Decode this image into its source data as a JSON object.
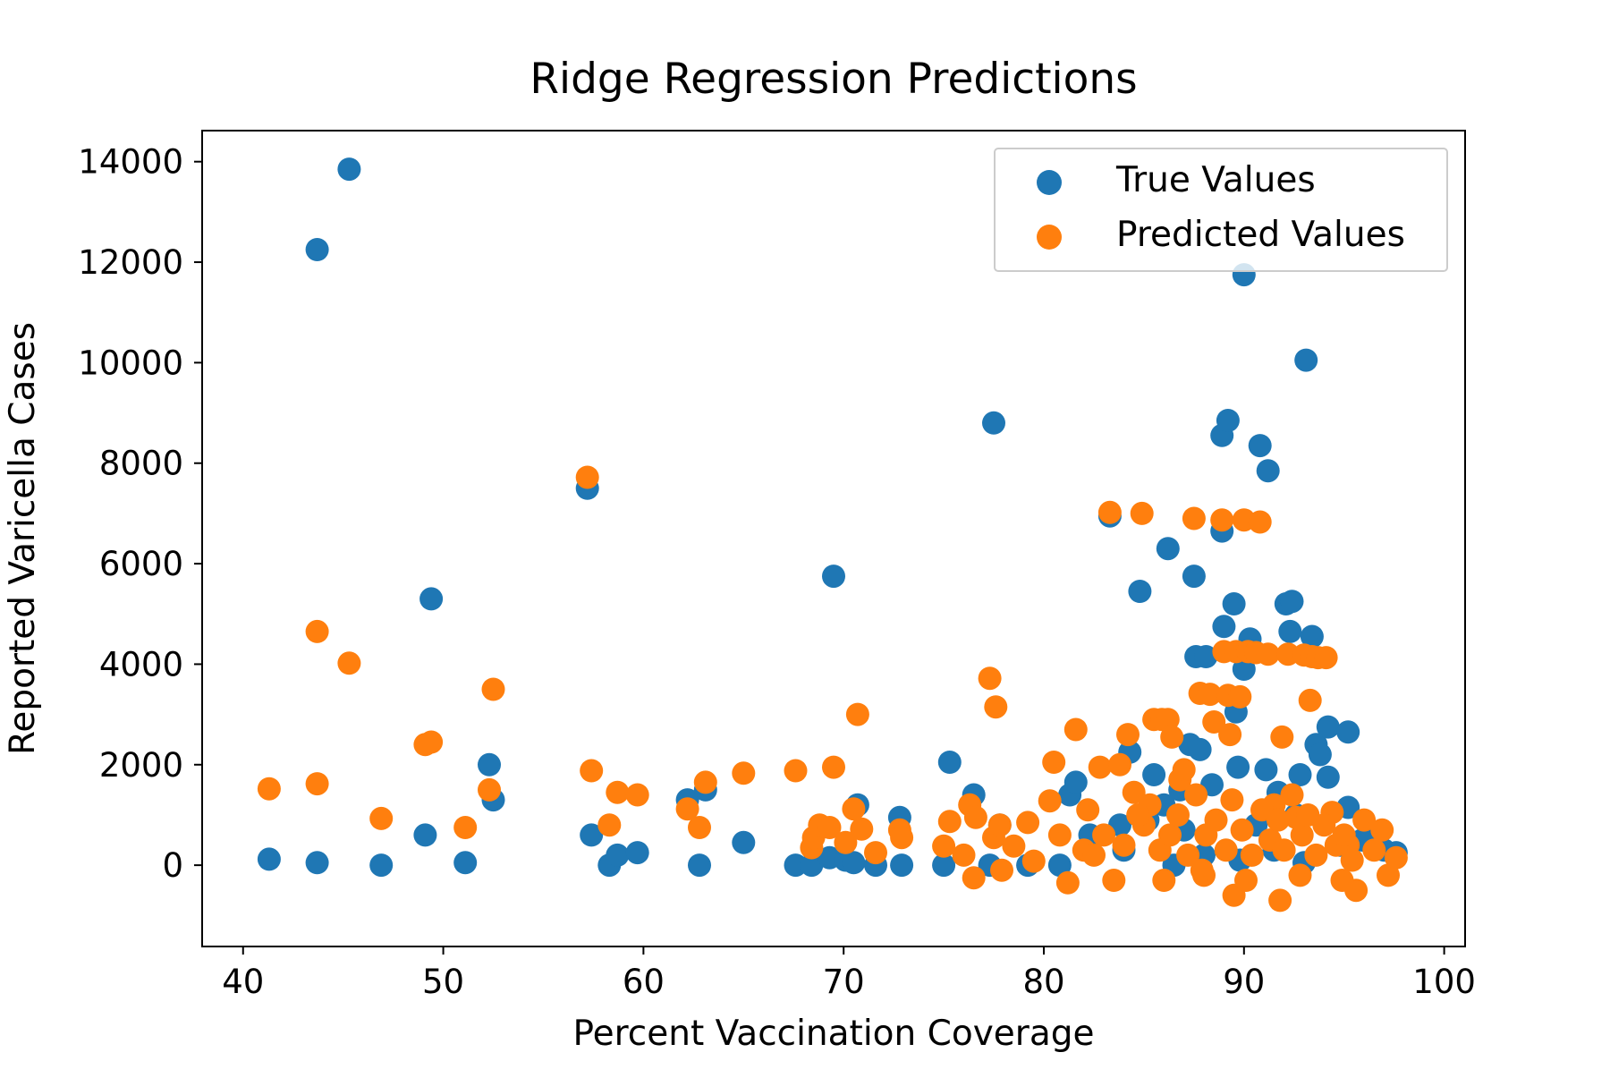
{
  "chart_data": {
    "type": "scatter",
    "title": "Ridge Regression Predictions",
    "xlabel": "Percent Vaccination Coverage",
    "ylabel": "Reported Varicella Cases",
    "xlim": [
      38,
      101
    ],
    "ylim": [
      -1600,
      14600
    ],
    "xticks": [
      40,
      50,
      60,
      70,
      80,
      90,
      100
    ],
    "yticks": [
      0,
      2000,
      4000,
      6000,
      8000,
      10000,
      12000,
      14000
    ],
    "xtick_labels": [
      "40",
      "50",
      "60",
      "70",
      "80",
      "90",
      "100"
    ],
    "ytick_labels": [
      "0",
      "2000",
      "4000",
      "6000",
      "8000",
      "10000",
      "12000",
      "14000"
    ],
    "grid": false,
    "legend_position": "top-right",
    "series": [
      {
        "name": "True Values",
        "color": "#1f77b4",
        "points": [
          [
            41.3,
            120
          ],
          [
            43.7,
            50
          ],
          [
            43.7,
            12250
          ],
          [
            45.3,
            13850
          ],
          [
            46.9,
            0
          ],
          [
            49.1,
            600
          ],
          [
            49.4,
            5300
          ],
          [
            51.1,
            50
          ],
          [
            52.3,
            2000
          ],
          [
            52.5,
            1300
          ],
          [
            57.2,
            7500
          ],
          [
            57.4,
            600
          ],
          [
            58.3,
            0
          ],
          [
            58.7,
            200
          ],
          [
            59.7,
            250
          ],
          [
            62.2,
            1300
          ],
          [
            62.8,
            0
          ],
          [
            63.1,
            1500
          ],
          [
            65.0,
            450
          ],
          [
            67.6,
            0
          ],
          [
            68.4,
            0
          ],
          [
            69.3,
            150
          ],
          [
            69.5,
            5750
          ],
          [
            70.1,
            100
          ],
          [
            70.5,
            50
          ],
          [
            70.7,
            1200
          ],
          [
            71.6,
            0
          ],
          [
            72.8,
            950
          ],
          [
            72.9,
            0
          ],
          [
            75.0,
            0
          ],
          [
            75.3,
            2050
          ],
          [
            76.5,
            1400
          ],
          [
            77.3,
            0
          ],
          [
            77.5,
            8800
          ],
          [
            77.8,
            800
          ],
          [
            79.2,
            0
          ],
          [
            80.8,
            0
          ],
          [
            81.3,
            1400
          ],
          [
            81.6,
            1650
          ],
          [
            82.3,
            600
          ],
          [
            83.3,
            6950
          ],
          [
            83.8,
            800
          ],
          [
            84.3,
            2250
          ],
          [
            84.8,
            5450
          ],
          [
            85.5,
            1800
          ],
          [
            86.2,
            6300
          ],
          [
            86.8,
            1500
          ],
          [
            87.3,
            2400
          ],
          [
            87.5,
            5750
          ],
          [
            87.6,
            4150
          ],
          [
            87.8,
            2300
          ],
          [
            88.1,
            4150
          ],
          [
            88.4,
            1600
          ],
          [
            88.9,
            8550
          ],
          [
            88.9,
            6650
          ],
          [
            89.0,
            4750
          ],
          [
            89.2,
            8850
          ],
          [
            89.5,
            5200
          ],
          [
            89.6,
            3050
          ],
          [
            89.7,
            1950
          ],
          [
            90.0,
            11750
          ],
          [
            90.0,
            3900
          ],
          [
            90.3,
            4500
          ],
          [
            90.8,
            8350
          ],
          [
            91.1,
            1900
          ],
          [
            91.2,
            7850
          ],
          [
            91.7,
            1450
          ],
          [
            92.1,
            5200
          ],
          [
            92.3,
            4650
          ],
          [
            92.4,
            5250
          ],
          [
            92.8,
            1800
          ],
          [
            93.1,
            10050
          ],
          [
            93.4,
            4550
          ],
          [
            93.6,
            2400
          ],
          [
            93.8,
            2200
          ],
          [
            94.2,
            2750
          ],
          [
            94.2,
            1750
          ],
          [
            95.2,
            2650
          ],
          [
            95.2,
            1150
          ],
          [
            96.3,
            600
          ],
          [
            97.0,
            300
          ],
          [
            97.6,
            250
          ],
          [
            86.5,
            0
          ],
          [
            88.0,
            200
          ],
          [
            89.8,
            100
          ],
          [
            91.5,
            300
          ],
          [
            93.0,
            50
          ],
          [
            94.8,
            400
          ],
          [
            85.2,
            900
          ],
          [
            87.0,
            700
          ],
          [
            90.6,
            800
          ],
          [
            92.6,
            1000
          ],
          [
            95.9,
            500
          ],
          [
            84.0,
            300
          ],
          [
            86.0,
            1200
          ]
        ]
      },
      {
        "name": "Predicted Values",
        "color": "#ff7f0e",
        "points": [
          [
            41.3,
            1520
          ],
          [
            43.7,
            4650
          ],
          [
            43.7,
            1620
          ],
          [
            45.3,
            4020
          ],
          [
            46.9,
            930
          ],
          [
            49.1,
            2400
          ],
          [
            49.4,
            2450
          ],
          [
            51.1,
            750
          ],
          [
            52.3,
            1500
          ],
          [
            52.5,
            3500
          ],
          [
            57.2,
            7720
          ],
          [
            57.4,
            1880
          ],
          [
            58.3,
            800
          ],
          [
            58.7,
            1450
          ],
          [
            59.7,
            1400
          ],
          [
            62.2,
            1120
          ],
          [
            62.8,
            750
          ],
          [
            63.1,
            1650
          ],
          [
            65.0,
            1830
          ],
          [
            67.6,
            1880
          ],
          [
            68.4,
            350
          ],
          [
            68.5,
            550
          ],
          [
            68.8,
            800
          ],
          [
            69.3,
            750
          ],
          [
            69.5,
            1950
          ],
          [
            70.1,
            450
          ],
          [
            70.5,
            1120
          ],
          [
            70.7,
            3000
          ],
          [
            70.9,
            720
          ],
          [
            71.6,
            250
          ],
          [
            72.8,
            700
          ],
          [
            72.9,
            550
          ],
          [
            75.0,
            380
          ],
          [
            75.3,
            870
          ],
          [
            76.0,
            200
          ],
          [
            76.3,
            1200
          ],
          [
            76.5,
            -250
          ],
          [
            76.6,
            950
          ],
          [
            77.3,
            3720
          ],
          [
            77.5,
            550
          ],
          [
            77.6,
            3150
          ],
          [
            77.8,
            800
          ],
          [
            77.9,
            -100
          ],
          [
            78.5,
            380
          ],
          [
            79.2,
            850
          ],
          [
            79.5,
            80
          ],
          [
            80.3,
            1280
          ],
          [
            80.5,
            2050
          ],
          [
            80.8,
            600
          ],
          [
            81.2,
            -350
          ],
          [
            81.6,
            2700
          ],
          [
            82.0,
            300
          ],
          [
            82.2,
            1100
          ],
          [
            82.8,
            1950
          ],
          [
            83.3,
            7020
          ],
          [
            83.5,
            -300
          ],
          [
            83.8,
            2000
          ],
          [
            84.2,
            2600
          ],
          [
            84.5,
            1450
          ],
          [
            84.9,
            7000
          ],
          [
            85.5,
            2900
          ],
          [
            85.9,
            2900
          ],
          [
            86.2,
            2900
          ],
          [
            86.4,
            2550
          ],
          [
            86.8,
            1700
          ],
          [
            87.0,
            1900
          ],
          [
            87.5,
            6900
          ],
          [
            87.8,
            3420
          ],
          [
            88.0,
            -200
          ],
          [
            88.3,
            3400
          ],
          [
            88.5,
            2850
          ],
          [
            88.9,
            6870
          ],
          [
            89.0,
            4250
          ],
          [
            89.2,
            3380
          ],
          [
            89.3,
            2600
          ],
          [
            89.5,
            -600
          ],
          [
            89.6,
            4250
          ],
          [
            89.8,
            3350
          ],
          [
            90.0,
            6870
          ],
          [
            90.2,
            4250
          ],
          [
            90.6,
            4230
          ],
          [
            90.8,
            6830
          ],
          [
            91.2,
            4200
          ],
          [
            91.5,
            1200
          ],
          [
            91.8,
            -700
          ],
          [
            91.9,
            2550
          ],
          [
            92.2,
            4200
          ],
          [
            92.6,
            950
          ],
          [
            93.0,
            4180
          ],
          [
            93.3,
            3280
          ],
          [
            93.4,
            4150
          ],
          [
            93.7,
            4130
          ],
          [
            94.1,
            4130
          ],
          [
            94.4,
            1050
          ],
          [
            95.2,
            400
          ],
          [
            96.0,
            900
          ],
          [
            96.9,
            700
          ],
          [
            97.2,
            -200
          ],
          [
            97.6,
            150
          ],
          [
            95.6,
            -500
          ],
          [
            85.0,
            800
          ],
          [
            85.3,
            1200
          ],
          [
            85.8,
            300
          ],
          [
            86.3,
            600
          ],
          [
            86.7,
            1000
          ],
          [
            87.2,
            200
          ],
          [
            87.6,
            1400
          ],
          [
            88.1,
            600
          ],
          [
            88.6,
            900
          ],
          [
            89.1,
            300
          ],
          [
            89.4,
            1300
          ],
          [
            89.9,
            700
          ],
          [
            90.4,
            200
          ],
          [
            90.9,
            1100
          ],
          [
            91.3,
            500
          ],
          [
            91.7,
            900
          ],
          [
            92.0,
            300
          ],
          [
            92.4,
            1400
          ],
          [
            92.9,
            600
          ],
          [
            93.2,
            1000
          ],
          [
            93.6,
            200
          ],
          [
            94.0,
            800
          ],
          [
            94.6,
            400
          ],
          [
            95.0,
            600
          ],
          [
            95.4,
            100
          ],
          [
            84.0,
            400
          ],
          [
            84.7,
            1000
          ],
          [
            83.0,
            600
          ],
          [
            82.5,
            200
          ],
          [
            86.0,
            -300
          ],
          [
            87.9,
            -100
          ],
          [
            90.1,
            -300
          ],
          [
            92.8,
            -200
          ],
          [
            94.9,
            -300
          ],
          [
            96.5,
            300
          ]
        ]
      }
    ]
  }
}
